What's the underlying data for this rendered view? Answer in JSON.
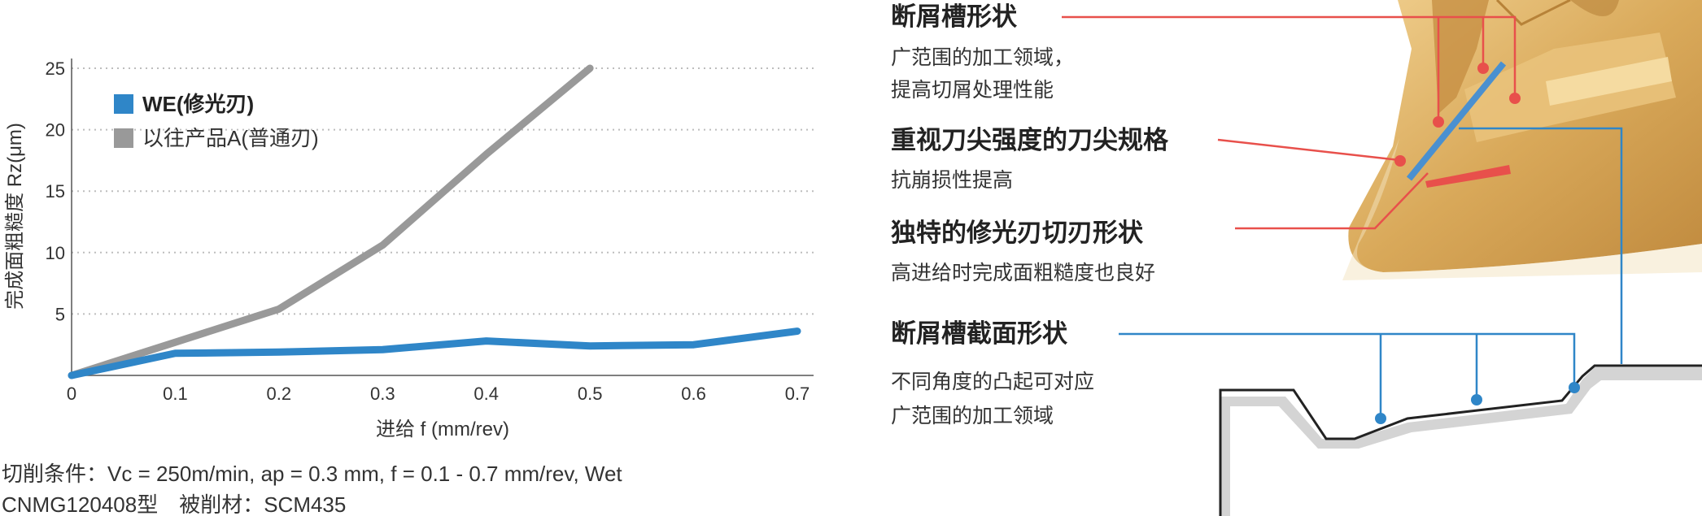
{
  "chart_data": {
    "type": "line",
    "xlabel": "进给 f (mm/rev)",
    "ylabel": "完成面粗糙度 Rz(μm)",
    "xlim": [
      0,
      0.7
    ],
    "ylim": [
      0,
      25
    ],
    "x_ticks": [
      "0",
      "0.1",
      "0.2",
      "0.3",
      "0.4",
      "0.5",
      "0.6",
      "0.7"
    ],
    "y_ticks": [
      "5",
      "10",
      "15",
      "20",
      "25"
    ],
    "grid": true,
    "legend_position": "top-left",
    "series": [
      {
        "name": "WE(修光刃)",
        "color": "#2f86c8",
        "bold": true,
        "x": [
          0,
          0.1,
          0.2,
          0.3,
          0.4,
          0.5,
          0.6,
          0.7
        ],
        "values": [
          0,
          1.8,
          1.9,
          2.1,
          2.8,
          2.4,
          2.5,
          3.6
        ]
      },
      {
        "name": "以往产品A(普通刃)",
        "color": "#999999",
        "bold": false,
        "x": [
          0,
          0.1,
          0.2,
          0.3,
          0.4,
          0.5
        ],
        "values": [
          0,
          2.7,
          5.4,
          10.6,
          18.0,
          25.0
        ]
      }
    ]
  },
  "conditions": {
    "line1": "切削条件：Vc = 250m/min, ap = 0.3 mm, f = 0.1 - 0.7 mm/rev, Wet",
    "line2": "CNMG120408型　被削材：SCM435"
  },
  "features": [
    {
      "title": "断屑槽形状",
      "lines": [
        "广范围的加工领域，",
        "提高切屑处理性能"
      ]
    },
    {
      "title": "重视刀尖强度的刀尖规格",
      "lines": [
        "抗崩损性提高"
      ]
    },
    {
      "title": "独特的修光刃切刃形状",
      "lines": [
        "高进给时完成面粗糙度也良好"
      ]
    },
    {
      "title": "断屑槽截面形状",
      "lines": [
        "不同角度的凸起可对应",
        "广范围的加工领域"
      ]
    }
  ],
  "colors": {
    "red": "#e8504b",
    "blue": "#2f86c8",
    "insert": "#d9a95a"
  }
}
